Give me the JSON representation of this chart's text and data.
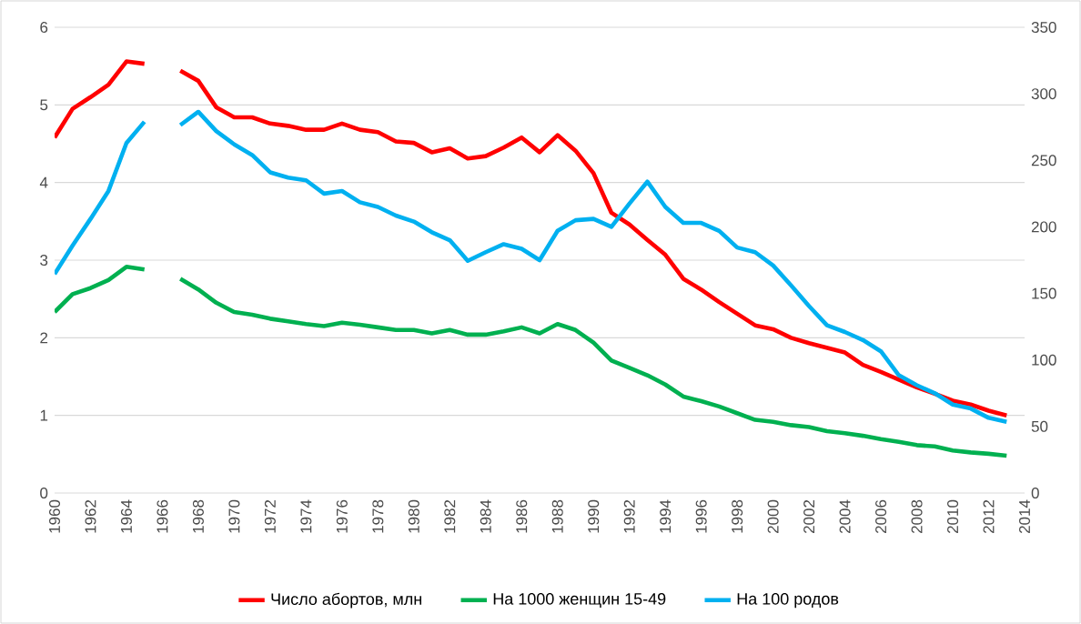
{
  "chart_data": {
    "type": "line",
    "x": [
      1960,
      1961,
      1962,
      1963,
      1964,
      1965,
      1966,
      1967,
      1968,
      1969,
      1970,
      1971,
      1972,
      1973,
      1974,
      1975,
      1976,
      1977,
      1978,
      1979,
      1980,
      1981,
      1982,
      1983,
      1984,
      1985,
      1986,
      1987,
      1988,
      1989,
      1990,
      1991,
      1992,
      1993,
      1994,
      1995,
      1996,
      1997,
      1998,
      1999,
      2000,
      2001,
      2002,
      2003,
      2004,
      2005,
      2006,
      2007,
      2008,
      2009,
      2010,
      2011,
      2012,
      2013
    ],
    "series": [
      {
        "name": "Число абортов, млн",
        "color": "#ff0000",
        "values": [
          4.58,
          4.95,
          5.1,
          5.26,
          5.56,
          5.53,
          null,
          5.44,
          5.31,
          4.97,
          4.84,
          4.84,
          4.76,
          4.73,
          4.68,
          4.68,
          4.76,
          4.68,
          4.65,
          4.53,
          4.51,
          4.39,
          4.44,
          4.31,
          4.34,
          4.45,
          4.58,
          4.39,
          4.61,
          4.41,
          4.12,
          3.61,
          3.46,
          3.26,
          3.07,
          2.76,
          2.62,
          2.46,
          2.31,
          2.16,
          2.11,
          2.0,
          1.93,
          1.87,
          1.81,
          1.65,
          1.56,
          1.46,
          1.36,
          1.28,
          1.19,
          1.14,
          1.06,
          1.0
        ]
      },
      {
        "name": "На 1000 женщин 15-49",
        "color": "#00b050",
        "axis": "y2",
        "values": [
          136,
          149.5,
          154,
          160,
          170,
          168,
          null,
          161,
          153,
          143,
          136,
          134,
          131,
          129,
          127,
          125.5,
          128,
          126.5,
          124.5,
          122.5,
          122.5,
          120,
          122.5,
          119,
          119,
          121.5,
          124.5,
          120,
          127,
          122.5,
          113,
          99.5,
          94,
          88.5,
          81.5,
          72.5,
          69,
          65,
          60,
          55,
          53.5,
          51,
          49.5,
          46.5,
          45,
          43,
          40.5,
          38.5,
          36,
          35,
          32,
          30.5,
          29.5,
          28
        ]
      },
      {
        "name": "На 100 родов",
        "color": "#00b0f0",
        "axis": "y2",
        "values": [
          164.5,
          186,
          206,
          227,
          263,
          279,
          null,
          276.5,
          286.5,
          272,
          262,
          254,
          241,
          237,
          235,
          225,
          227,
          218.5,
          215,
          208.5,
          204,
          196,
          190,
          174.5,
          181,
          187,
          183.5,
          175,
          197,
          205,
          206,
          200,
          217.5,
          234,
          215,
          203,
          203,
          197,
          184.5,
          181,
          171,
          156,
          140.5,
          126,
          121,
          115,
          106.5,
          88.5,
          81,
          75,
          66.5,
          63.5,
          56.5,
          53.5
        ]
      }
    ],
    "xlim": [
      1960,
      2014
    ],
    "xticks": [
      1960,
      1962,
      1964,
      1966,
      1968,
      1970,
      1972,
      1974,
      1976,
      1978,
      1980,
      1982,
      1984,
      1986,
      1988,
      1990,
      1992,
      1994,
      1996,
      1998,
      2000,
      2002,
      2004,
      2006,
      2008,
      2010,
      2012,
      2014
    ],
    "ylim": [
      0,
      6
    ],
    "yticks": [
      0,
      1,
      2,
      3,
      4,
      5,
      6
    ],
    "y2lim": [
      0,
      350
    ],
    "y2ticks": [
      0,
      50,
      100,
      150,
      200,
      250,
      300,
      350
    ],
    "grid": "y",
    "legend": "bottom"
  }
}
